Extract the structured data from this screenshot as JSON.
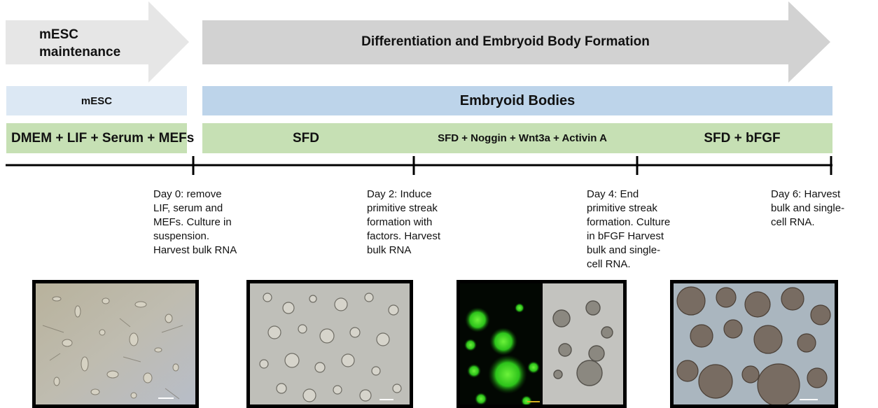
{
  "arrows": {
    "maintenance": {
      "label_line1": "mESC",
      "label_line2": "maintenance",
      "color": "#e6e6e6"
    },
    "differentiation": {
      "label": "Differentiation and Embryoid Body Formation",
      "color": "#d2d2d2"
    }
  },
  "cell_stage": {
    "mesc": {
      "label": "mESC",
      "color": "#dce8f4"
    },
    "embryoid": {
      "label": "Embryoid Bodies",
      "color": "#bdd4ea"
    }
  },
  "media": {
    "color": "#c6e0b4",
    "maintenance": "DMEM + LIF + Serum + MEFs",
    "sfd": "SFD",
    "induction": "SFD + Noggin + Wnt3a + Activin A",
    "bfgf": "SFD + bFGF"
  },
  "timeline_notes": [
    {
      "lines": [
        "Day 0: remove",
        "LIF, serum and",
        "MEFs. Culture in",
        "suspension.",
        "Harvest bulk RNA"
      ]
    },
    {
      "lines": [
        "Day 2: Induce",
        "primitive streak",
        "formation with",
        "factors. Harvest",
        "bulk RNA"
      ]
    },
    {
      "lines": [
        "Day 4: End",
        "primitive streak",
        "formation. Culture",
        "in bFGF Harvest",
        "bulk and single-",
        "cell RNA."
      ]
    },
    {
      "lines": [
        "Day 6: Harvest",
        "bulk and single-",
        "cell RNA."
      ]
    }
  ],
  "photos": {
    "mesc_colony": "mESC micrograph",
    "day2_eb": "Day 2 embryoid body micrograph",
    "day4_fluor": "Day 4 fluorescence micrograph",
    "day4_bright": "Day 4 brightfield micrograph",
    "day6_eb": "Day 6 embryoid body micrograph"
  }
}
